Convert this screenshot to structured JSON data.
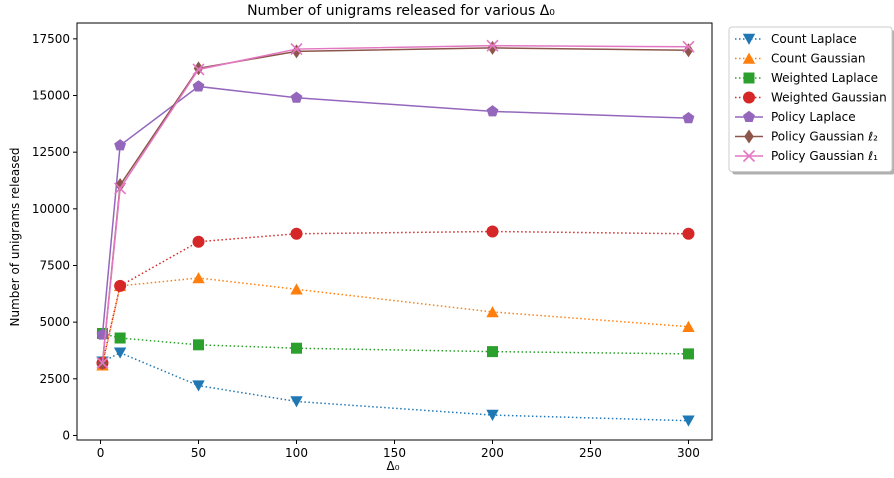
{
  "chart_data": {
    "type": "line",
    "title": "Number of unigrams released for various Δ₀",
    "xlabel": "Δ₀",
    "ylabel": "Number of unigrams released",
    "x": [
      1,
      10,
      50,
      100,
      200,
      300
    ],
    "xlim": [
      -12,
      312
    ],
    "ylim": [
      -200,
      18200
    ],
    "xticks": [
      0,
      50,
      100,
      150,
      200,
      250,
      300
    ],
    "yticks": [
      0,
      2500,
      5000,
      7500,
      10000,
      12500,
      15000,
      17500
    ],
    "grid": false,
    "legend_position": "outside-top-right",
    "series": [
      {
        "name": "Count Laplace",
        "color": "#1f77b4",
        "marker": "triangle-down",
        "dash": "dotted",
        "values": [
          3250,
          3650,
          2200,
          1500,
          900,
          650
        ]
      },
      {
        "name": "Count Gaussian",
        "color": "#ff7f0e",
        "marker": "triangle-up",
        "dash": "dotted",
        "values": [
          3100,
          6600,
          6950,
          6450,
          5450,
          4800
        ]
      },
      {
        "name": "Weighted Laplace",
        "color": "#2ca02c",
        "marker": "square",
        "dash": "dotted",
        "values": [
          4500,
          4300,
          4000,
          3850,
          3700,
          3600
        ]
      },
      {
        "name": "Weighted Gaussian",
        "color": "#d62728",
        "marker": "circle",
        "dash": "dotted",
        "values": [
          3200,
          6600,
          8550,
          8900,
          9000,
          8900
        ]
      },
      {
        "name": "Policy Laplace",
        "color": "#9467bd",
        "marker": "pentagon",
        "dash": "solid",
        "values": [
          4450,
          12800,
          15400,
          14900,
          14300,
          14000
        ]
      },
      {
        "name": "Policy Gaussian ℓ₂",
        "color": "#8c564b",
        "marker": "diamond",
        "dash": "solid",
        "values": [
          3200,
          11050,
          16200,
          16950,
          17100,
          17000
        ]
      },
      {
        "name": "Policy Gaussian ℓ₁",
        "color": "#e377c2",
        "marker": "x",
        "dash": "solid",
        "values": [
          3200,
          10900,
          16150,
          17050,
          17200,
          17150
        ]
      }
    ]
  }
}
